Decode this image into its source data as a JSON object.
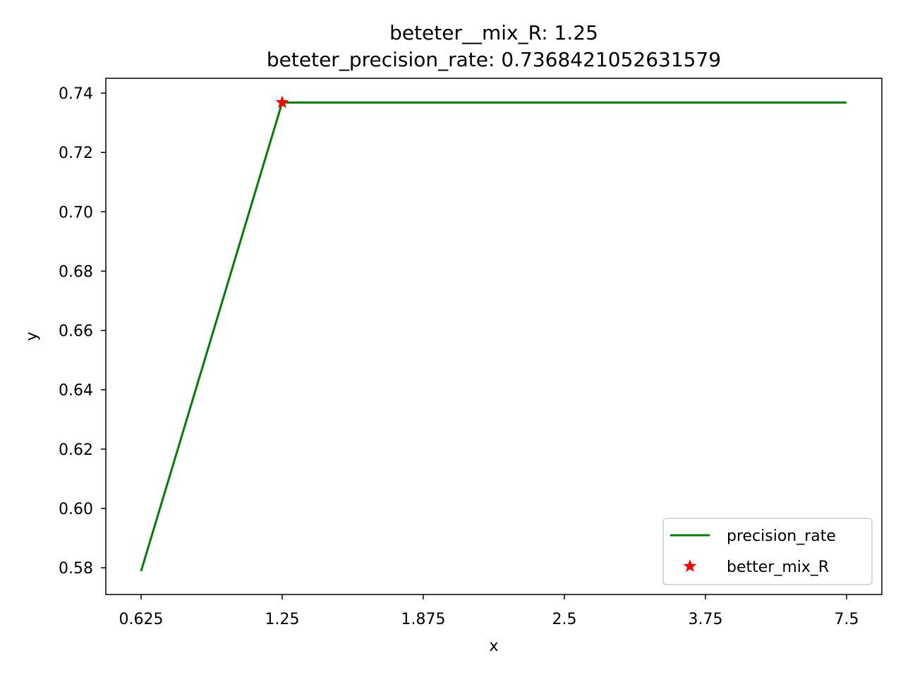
{
  "chart_data": {
    "type": "line",
    "title_lines": [
      "beteter__mix_R: 1.25",
      "beteter_precision_rate: 0.7368421052631579"
    ],
    "xlabel": "x",
    "ylabel": "y",
    "x_scale": "categorical",
    "categories": [
      "0.625",
      "1.25",
      "1.875",
      "2.5",
      "3.75",
      "7.5"
    ],
    "ylim": [
      0.571,
      0.745
    ],
    "y_ticks": [
      "0.58",
      "0.60",
      "0.62",
      "0.64",
      "0.66",
      "0.68",
      "0.70",
      "0.72",
      "0.74"
    ],
    "grid": false,
    "legend_position": "lower right",
    "series": [
      {
        "name": "precision_rate",
        "kind": "line",
        "color": "#008000",
        "values": [
          0.5789,
          0.7368421052631579,
          0.7368421052631579,
          0.7368421052631579,
          0.7368421052631579,
          0.7368421052631579
        ]
      },
      {
        "name": "better_mix_R",
        "kind": "marker",
        "marker": "star",
        "color": "#ff0000",
        "points": [
          {
            "x": "1.25",
            "y": 0.7368421052631579
          }
        ]
      }
    ]
  }
}
